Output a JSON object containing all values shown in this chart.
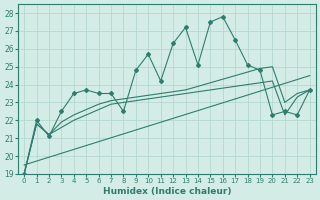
{
  "xlabel": "Humidex (Indice chaleur)",
  "bg_color": "#d4ece6",
  "grid_color": "#b0d4cc",
  "line_color": "#2e7d6e",
  "xlim": [
    -0.5,
    23.5
  ],
  "ylim": [
    19,
    28.5
  ],
  "yticks": [
    19,
    20,
    21,
    22,
    23,
    24,
    25,
    26,
    27,
    28
  ],
  "xticks": [
    0,
    1,
    2,
    3,
    4,
    5,
    6,
    7,
    8,
    9,
    10,
    11,
    12,
    13,
    14,
    15,
    16,
    17,
    18,
    19,
    20,
    21,
    22,
    23
  ],
  "series_marker": {
    "x": [
      0,
      1,
      2,
      3,
      4,
      5,
      6,
      7,
      8,
      9,
      10,
      11,
      12,
      13,
      14,
      15,
      16,
      17,
      18,
      19,
      20,
      21,
      22,
      23
    ],
    "y": [
      19,
      22,
      21.1,
      22.5,
      23.5,
      23.7,
      23.5,
      23.5,
      22.5,
      24.8,
      25.7,
      24.2,
      26.3,
      27.2,
      25.1,
      27.5,
      27.8,
      26.5,
      25.1,
      24.8,
      22.3,
      22.5,
      22.3,
      23.7
    ]
  },
  "series_smooth1": {
    "x": [
      0,
      1,
      2,
      3,
      4,
      5,
      6,
      7,
      8,
      9,
      10,
      11,
      12,
      13,
      14,
      15,
      16,
      17,
      18,
      19,
      20,
      21,
      22,
      23
    ],
    "y": [
      19,
      21.8,
      21.2,
      21.9,
      22.3,
      22.6,
      22.9,
      23.1,
      23.2,
      23.3,
      23.4,
      23.5,
      23.6,
      23.7,
      23.9,
      24.1,
      24.3,
      24.5,
      24.7,
      24.9,
      25.0,
      23.0,
      23.5,
      23.7
    ]
  },
  "series_smooth2": {
    "x": [
      0,
      1,
      2,
      3,
      4,
      5,
      6,
      7,
      8,
      9,
      10,
      11,
      12,
      13,
      14,
      15,
      16,
      17,
      18,
      19,
      20,
      21,
      22,
      23
    ],
    "y": [
      19,
      21.8,
      21.2,
      21.6,
      22.0,
      22.3,
      22.6,
      22.9,
      23.0,
      23.1,
      23.2,
      23.3,
      23.4,
      23.5,
      23.6,
      23.7,
      23.8,
      23.9,
      24.0,
      24.1,
      24.2,
      22.3,
      23.3,
      23.7
    ]
  },
  "series_linear": {
    "x": [
      0,
      23
    ],
    "y": [
      19.5,
      24.5
    ]
  }
}
